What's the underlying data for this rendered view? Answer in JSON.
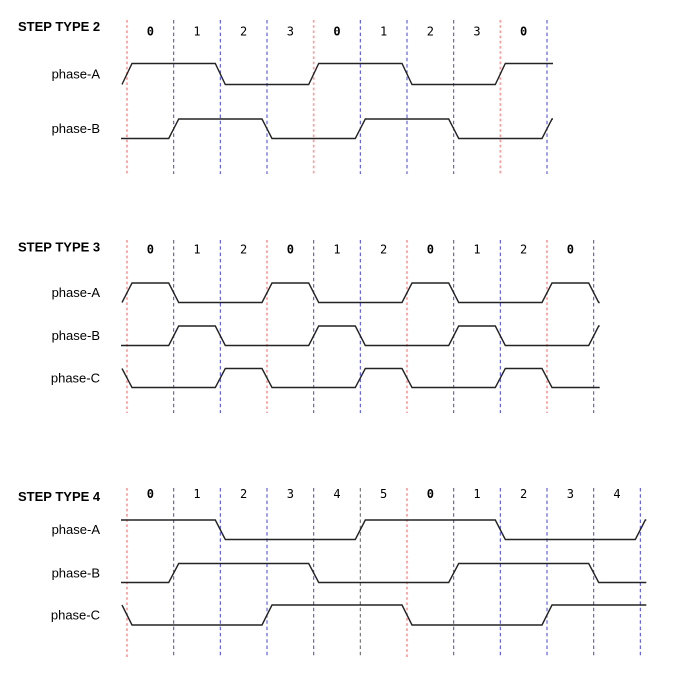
{
  "page": {
    "background": "#ffffff"
  },
  "palette": {
    "red_gridline": "#ff9b9b",
    "blue_gridline": "#5353dd",
    "black_gridline": "#6b6b6b",
    "waveform": "#232323",
    "text": "#000000"
  },
  "chart_data": [
    {
      "type": "line",
      "title": "STEP TYPE 2",
      "subtitle": "",
      "step_labels": [
        "0",
        "1",
        "2",
        "3",
        "0",
        "1",
        "2",
        "3",
        "0"
      ],
      "bold_step_label": "0",
      "gridline_colors": [
        "red",
        "blue",
        "blue",
        "blue",
        "red",
        "blue",
        "blue",
        "blue",
        "red",
        "blue"
      ],
      "signals": [
        {
          "name": "phase-A",
          "prev_level": 0,
          "levels": [
            1,
            1,
            0,
            0,
            1,
            1,
            0,
            0,
            1
          ],
          "next_level": 1
        },
        {
          "name": "phase-B",
          "prev_level": 0,
          "levels": [
            0,
            1,
            1,
            0,
            0,
            1,
            1,
            0,
            0
          ],
          "next_level": 1
        }
      ]
    },
    {
      "type": "line",
      "title": "STEP TYPE 3",
      "subtitle": "",
      "step_labels": [
        "0",
        "1",
        "2",
        "0",
        "1",
        "2",
        "0",
        "1",
        "2",
        "0"
      ],
      "bold_step_label": "0",
      "gridline_colors": [
        "red",
        "blue",
        "blue",
        "red",
        "blue",
        "blue",
        "red",
        "blue",
        "blue",
        "red",
        "blue"
      ],
      "signals": [
        {
          "name": "phase-A",
          "prev_level": 0,
          "levels": [
            1,
            0,
            0,
            1,
            0,
            0,
            1,
            0,
            0,
            1
          ],
          "next_level": 0
        },
        {
          "name": "phase-B",
          "prev_level": 0,
          "levels": [
            0,
            1,
            0,
            0,
            1,
            0,
            0,
            1,
            0,
            0
          ],
          "next_level": 1
        },
        {
          "name": "phase-C",
          "prev_level": 1,
          "levels": [
            0,
            0,
            1,
            0,
            0,
            1,
            0,
            0,
            1,
            0
          ],
          "next_level": 0
        }
      ]
    },
    {
      "type": "line",
      "title": "STEP TYPE 4",
      "subtitle": "",
      "step_labels": [
        "0",
        "1",
        "2",
        "3",
        "4",
        "5",
        "0",
        "1",
        "2",
        "3",
        "4"
      ],
      "bold_step_label": "0",
      "gridline_colors": [
        "red",
        "blue",
        "blue",
        "blue",
        "blue",
        "black",
        "red",
        "blue",
        "blue",
        "blue",
        "blue",
        "blue"
      ],
      "signals": [
        {
          "name": "phase-A",
          "prev_level": 1,
          "levels": [
            1,
            1,
            0,
            0,
            0,
            1,
            1,
            1,
            0,
            0,
            0
          ],
          "next_level": 1
        },
        {
          "name": "phase-B",
          "prev_level": 0,
          "levels": [
            0,
            1,
            1,
            1,
            0,
            0,
            0,
            1,
            1,
            1,
            0
          ],
          "next_level": 0
        },
        {
          "name": "phase-C",
          "prev_level": 1,
          "levels": [
            0,
            0,
            0,
            1,
            1,
            1,
            0,
            0,
            0,
            1,
            1
          ],
          "next_level": 1
        }
      ]
    }
  ]
}
